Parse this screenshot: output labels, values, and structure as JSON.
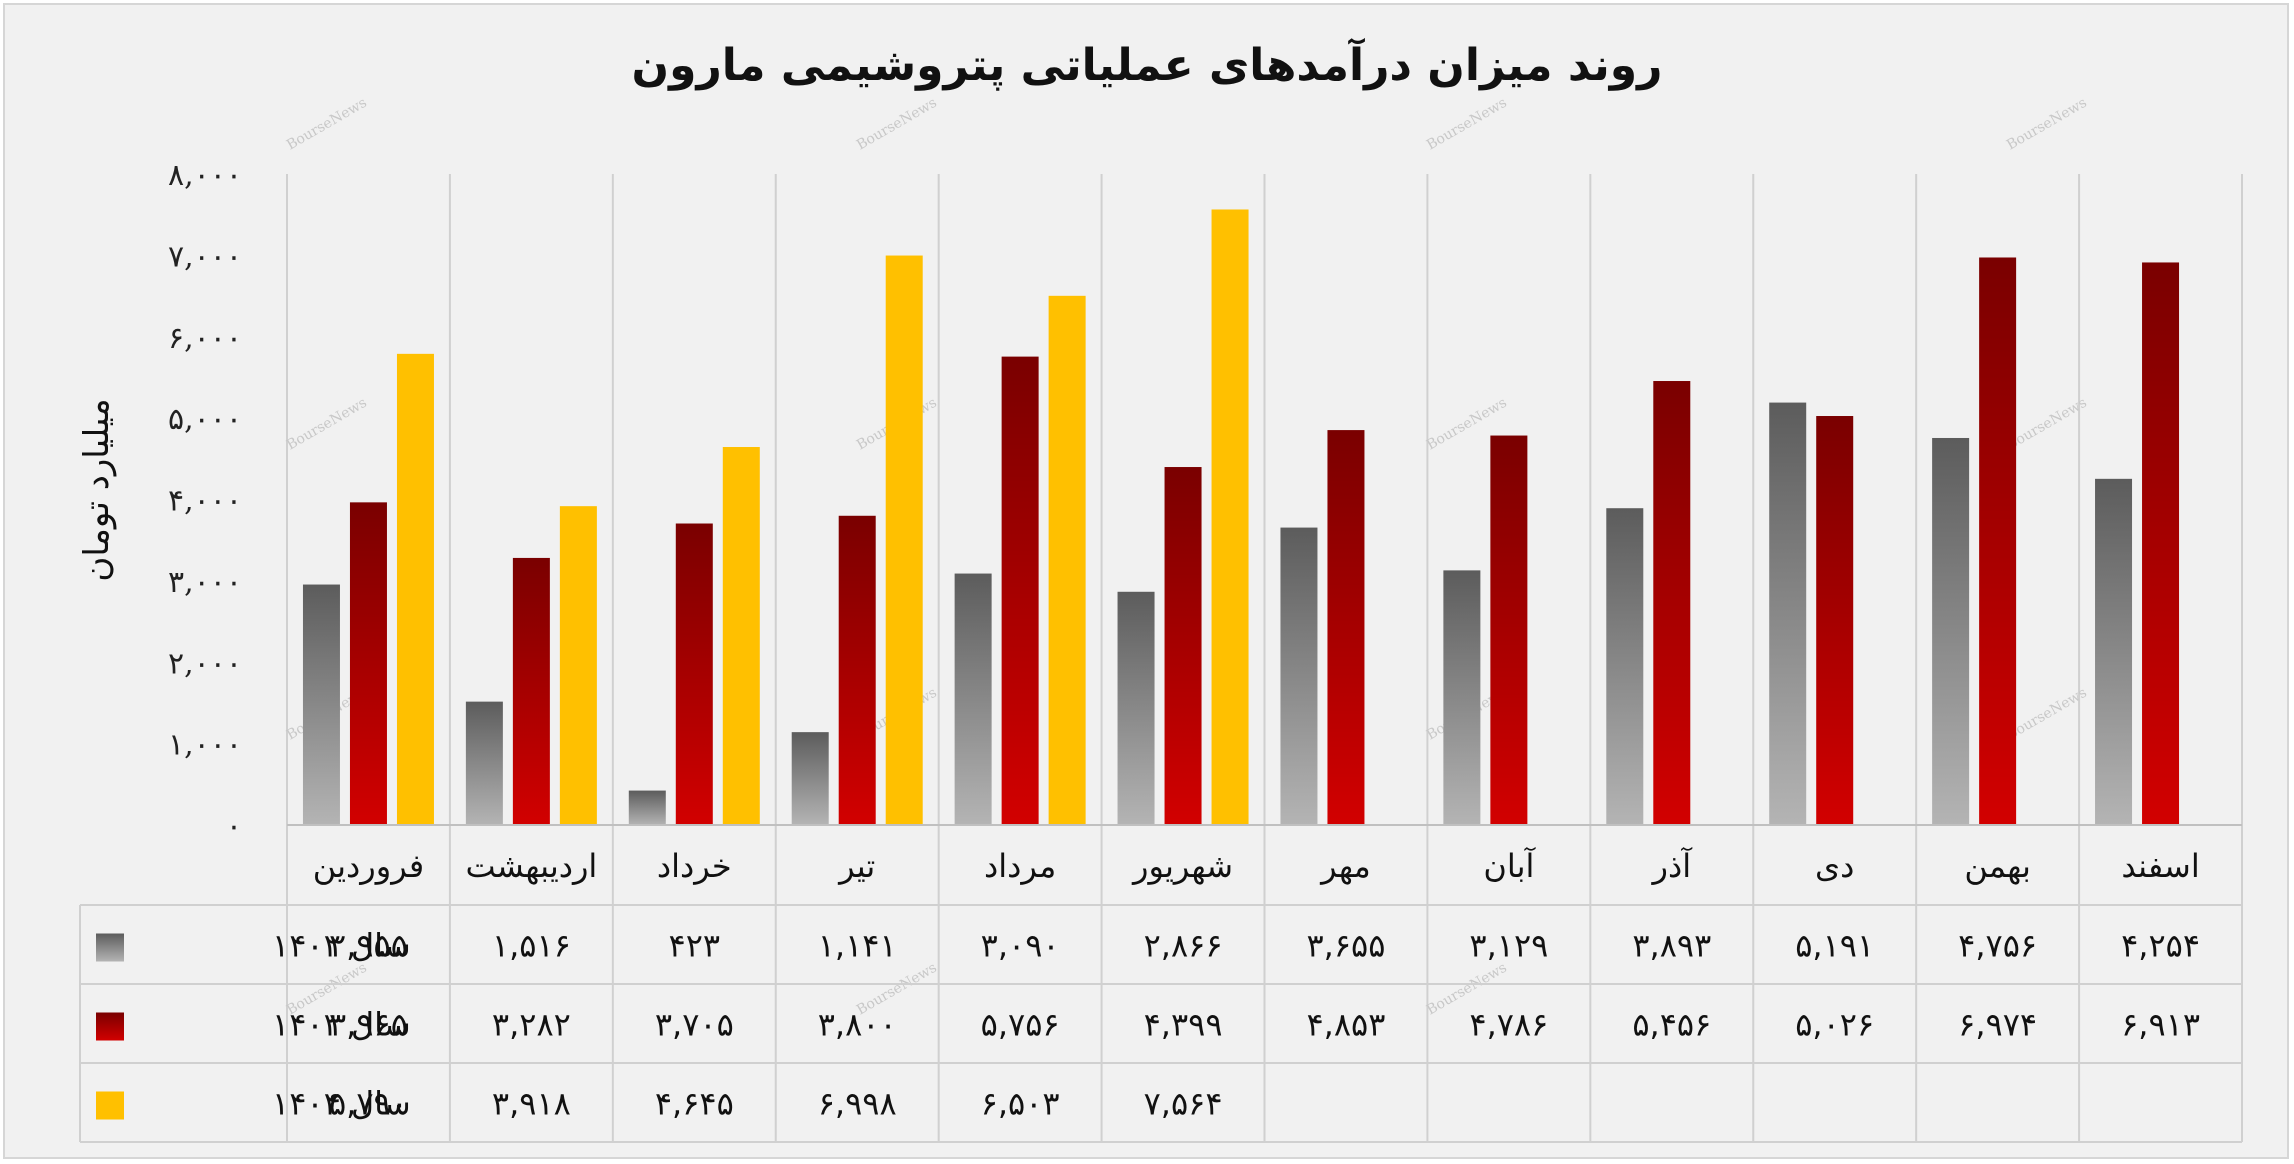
{
  "chart_data": {
    "type": "bar",
    "title": "روند میزان درآمدهای عملیاتی پتروشیمی مارون",
    "ylabel": "میلیارد تومان",
    "xlabel": "",
    "ylim": [
      0,
      8000
    ],
    "yticks": [
      0,
      1000,
      2000,
      3000,
      4000,
      5000,
      6000,
      7000,
      8000
    ],
    "ytick_labels": [
      "۰",
      "۱,۰۰۰",
      "۲,۰۰۰",
      "۳,۰۰۰",
      "۴,۰۰۰",
      "۵,۰۰۰",
      "۶,۰۰۰",
      "۷,۰۰۰",
      "۸,۰۰۰"
    ],
    "grid": "vertical",
    "legend": "data-table-left",
    "categories": [
      "فروردین",
      "اردیبهشت",
      "خرداد",
      "تیر",
      "مرداد",
      "شهریور",
      "مهر",
      "آبان",
      "آذر",
      "دی",
      "بهمن",
      "اسفند"
    ],
    "series": [
      {
        "name": "سال ۱۴۰۲",
        "color": "#7a7a7a",
        "color_light": "#b4b4b4",
        "color_dark": "#5c5c5c",
        "values": [
          2955,
          1516,
          423,
          1141,
          3090,
          2866,
          3655,
          3129,
          3893,
          5191,
          4756,
          4254
        ],
        "labels": [
          "۲,۹۵۵",
          "۱,۵۱۶",
          "۴۲۳",
          "۱,۱۴۱",
          "۳,۰۹۰",
          "۲,۸۶۶",
          "۳,۶۵۵",
          "۳,۱۲۹",
          "۳,۸۹۳",
          "۵,۱۹۱",
          "۴,۷۵۶",
          "۴,۲۵۴"
        ]
      },
      {
        "name": "سال ۱۴۰۳",
        "color": "#a30000",
        "color_light": "#d20000",
        "color_dark": "#7a0000",
        "values": [
          3965,
          3282,
          3705,
          3800,
          5756,
          4399,
          4853,
          4786,
          5456,
          5026,
          6974,
          6913
        ],
        "labels": [
          "۳,۹۶۵",
          "۳,۲۸۲",
          "۳,۷۰۵",
          "۳,۸۰۰",
          "۵,۷۵۶",
          "۴,۳۹۹",
          "۴,۸۵۳",
          "۴,۷۸۶",
          "۵,۴۵۶",
          "۵,۰۲۶",
          "۶,۹۷۴",
          "۶,۹۱۳"
        ]
      },
      {
        "name": "سال ۱۴۰۴",
        "color": "#ffc000",
        "color_light": "#ffc000",
        "color_dark": "#ffc000",
        "values": [
          5790,
          3918,
          4645,
          6998,
          6503,
          7564,
          null,
          null,
          null,
          null,
          null,
          null
        ],
        "labels": [
          "۵,۷۹۰",
          "۳,۹۱۸",
          "۴,۶۴۵",
          "۶,۹۹۸",
          "۶,۵۰۳",
          "۷,۵۶۴",
          "",
          "",
          "",
          "",
          "",
          ""
        ]
      }
    ],
    "watermark": "BourseNews"
  }
}
